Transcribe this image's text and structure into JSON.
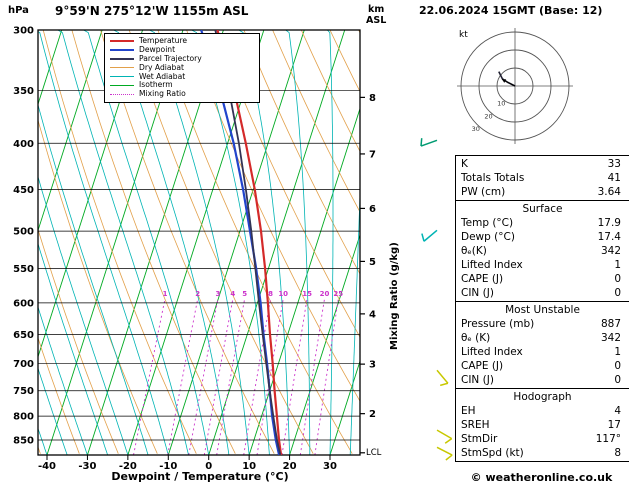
{
  "header": {
    "pressure_unit": "hPa",
    "station": "9°59'N 275°12'W 1155m ASL",
    "km_unit": "km",
    "asl_unit": "ASL",
    "datetime": "22.06.2024 15GMT (Base: 12)"
  },
  "legend": {
    "items": [
      {
        "label": "Temperature",
        "color": "#d42a2a",
        "width": 2,
        "dash": false
      },
      {
        "label": "Dewpoint",
        "color": "#2244cc",
        "width": 2,
        "dash": false
      },
      {
        "label": "Parcel Trajectory",
        "color": "#333355",
        "width": 2,
        "dash": false
      },
      {
        "label": "Dry Adiabat",
        "color": "#e2a04a",
        "width": 1,
        "dash": false
      },
      {
        "label": "Wet Adiabat",
        "color": "#00b4b4",
        "width": 1,
        "dash": false
      },
      {
        "label": "Isotherm",
        "color": "#00aa22",
        "width": 1,
        "dash": false
      },
      {
        "label": "Mixing Ratio",
        "color": "#cc33cc",
        "width": 1,
        "dash": true
      }
    ]
  },
  "axes": {
    "xlabel": "Dewpoint / Temperature (°C)",
    "pressure_ticks": [
      300,
      350,
      400,
      450,
      500,
      550,
      600,
      650,
      700,
      750,
      800,
      850
    ],
    "temp_ticks": [
      -40,
      -30,
      -20,
      -10,
      0,
      10,
      20,
      30
    ],
    "km_ticks": [
      {
        "km": 8,
        "p": 356
      },
      {
        "km": 7,
        "p": 411
      },
      {
        "km": 6,
        "p": 472
      },
      {
        "km": 5,
        "p": 540
      },
      {
        "km": 4,
        "p": 617
      },
      {
        "km": 3,
        "p": 701
      },
      {
        "km": 2,
        "p": 795
      }
    ],
    "mixing_ratio_label": "Mixing Ratio (g/kg)",
    "lcl_label": "LCL"
  },
  "chart_data": {
    "type": "line",
    "variant": "skew-t-log-p",
    "title": "9°59'N 275°12'W 1155m ASL",
    "xlabel": "Dewpoint / Temperature (°C)",
    "ylabel": "hPa",
    "pressure_range_hPa": [
      300,
      883
    ],
    "temp_axis_range_C": [
      -40,
      35
    ],
    "series": [
      {
        "name": "Temperature",
        "color": "#d42a2a",
        "width": 2.2,
        "points_p_T": [
          [
            883,
            17.9
          ],
          [
            850,
            16.2
          ],
          [
            800,
            13.8
          ],
          [
            750,
            11.2
          ],
          [
            700,
            8.6
          ],
          [
            650,
            5.6
          ],
          [
            600,
            2.6
          ],
          [
            550,
            -0.8
          ],
          [
            500,
            -4.8
          ],
          [
            450,
            -9.6
          ],
          [
            400,
            -15.5
          ],
          [
            350,
            -22.5
          ],
          [
            300,
            -31.5
          ]
        ]
      },
      {
        "name": "Dewpoint",
        "color": "#2244cc",
        "width": 2.2,
        "points_p_T": [
          [
            883,
            17.4
          ],
          [
            850,
            15.4
          ],
          [
            800,
            12.6
          ],
          [
            750,
            10.0
          ],
          [
            700,
            7.2
          ],
          [
            650,
            4.0
          ],
          [
            600,
            0.8
          ],
          [
            550,
            -3.0
          ],
          [
            500,
            -7.5
          ],
          [
            450,
            -12.5
          ],
          [
            400,
            -18.5
          ],
          [
            350,
            -26.0
          ],
          [
            300,
            -35.5
          ]
        ]
      },
      {
        "name": "Parcel Trajectory",
        "color": "#333355",
        "width": 1.8,
        "points_p_T": [
          [
            883,
            17.7
          ],
          [
            850,
            15.7
          ],
          [
            800,
            12.9
          ],
          [
            750,
            10.0
          ],
          [
            700,
            7.0
          ],
          [
            650,
            3.8
          ],
          [
            600,
            0.4
          ],
          [
            550,
            -3.2
          ],
          [
            500,
            -7.2
          ],
          [
            450,
            -11.8
          ],
          [
            400,
            -17.2
          ],
          [
            350,
            -23.8
          ],
          [
            300,
            -32.0
          ]
        ]
      }
    ],
    "background": {
      "isotherm_step_C": 10,
      "isotherm_color": "#00aa22",
      "dry_adiabat_theta_K": [
        240,
        440,
        10
      ],
      "dry_adiabat_color": "#e2a04a",
      "wet_adiabat_start_C": [
        -40,
        35,
        5
      ],
      "wet_adiabat_color": "#00b4b4",
      "mixing_ratio_g_kg": [
        1,
        2,
        3,
        4,
        5,
        8,
        10,
        15,
        20,
        25
      ],
      "mixing_ratio_color": "#cc33cc"
    }
  },
  "wind_barbs": [
    {
      "p": 397,
      "color": "#009b72",
      "dir_deg": 250,
      "speed_kt": 10
    },
    {
      "p": 499,
      "color": "#00b4b4",
      "dir_deg": 230,
      "speed_kt": 10
    },
    {
      "p": 712,
      "color": "#c8c800",
      "dir_deg": 140,
      "speed_kt": 5
    },
    {
      "p": 829,
      "color": "#c8c800",
      "dir_deg": 120,
      "speed_kt": 10
    },
    {
      "p": 866,
      "color": "#c8c800",
      "dir_deg": 117,
      "speed_kt": 8
    }
  ],
  "hodograph": {
    "unit": "kt",
    "ring_radii_kt": [
      10,
      20,
      30
    ],
    "ring_labels": [
      "10",
      "20",
      "30"
    ],
    "trace_uv_kt": [
      [
        0,
        0
      ],
      [
        -4,
        2
      ],
      [
        -7,
        4
      ],
      [
        -9,
        8
      ]
    ],
    "storm_motion": {
      "dir_deg": 117,
      "speed_kt": 8
    }
  },
  "table": {
    "sections": [
      {
        "rows": [
          [
            "K",
            "33"
          ],
          [
            "Totals Totals",
            "41"
          ],
          [
            "PW (cm)",
            "3.64"
          ]
        ]
      },
      {
        "header": "Surface",
        "rows": [
          [
            "Temp (°C)",
            "17.9"
          ],
          [
            "Dewp (°C)",
            "17.4"
          ],
          [
            "θₑ(K)",
            "342"
          ],
          [
            "Lifted Index",
            "1"
          ],
          [
            "CAPE (J)",
            "0"
          ],
          [
            "CIN (J)",
            "0"
          ]
        ]
      },
      {
        "header": "Most Unstable",
        "rows": [
          [
            "Pressure (mb)",
            "887"
          ],
          [
            "θₑ (K)",
            "342"
          ],
          [
            "Lifted Index",
            "1"
          ],
          [
            "CAPE (J)",
            "0"
          ],
          [
            "CIN (J)",
            "0"
          ]
        ]
      },
      {
        "header": "Hodograph",
        "rows": [
          [
            "EH",
            "4"
          ],
          [
            "SREH",
            "17"
          ],
          [
            "StmDir",
            "117°"
          ],
          [
            "StmSpd (kt)",
            "8"
          ]
        ]
      }
    ]
  },
  "footer": {
    "copyright": "© weatheronline.co.uk"
  }
}
